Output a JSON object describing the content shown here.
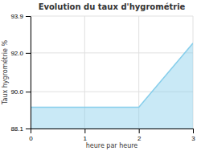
{
  "chart_data": {
    "type": "area",
    "title": "Evolution du taux d'hygrométrie",
    "xlabel": "heure par heure",
    "ylabel": "Taux hygrométrie %",
    "x": [
      0,
      1,
      2,
      3
    ],
    "values": [
      89.2,
      89.2,
      89.2,
      92.5
    ],
    "color": "#87ceeb",
    "xlim": [
      0,
      3
    ],
    "ylim": [
      88.1,
      93.9
    ],
    "xticks": [
      0,
      1,
      2,
      3
    ],
    "yticks": [
      88.1,
      {
        "value": 90.0,
        "label": "90.0"
      },
      {
        "value": 92.0,
        "label": "92.0"
      },
      93.9
    ],
    "grid": true
  }
}
